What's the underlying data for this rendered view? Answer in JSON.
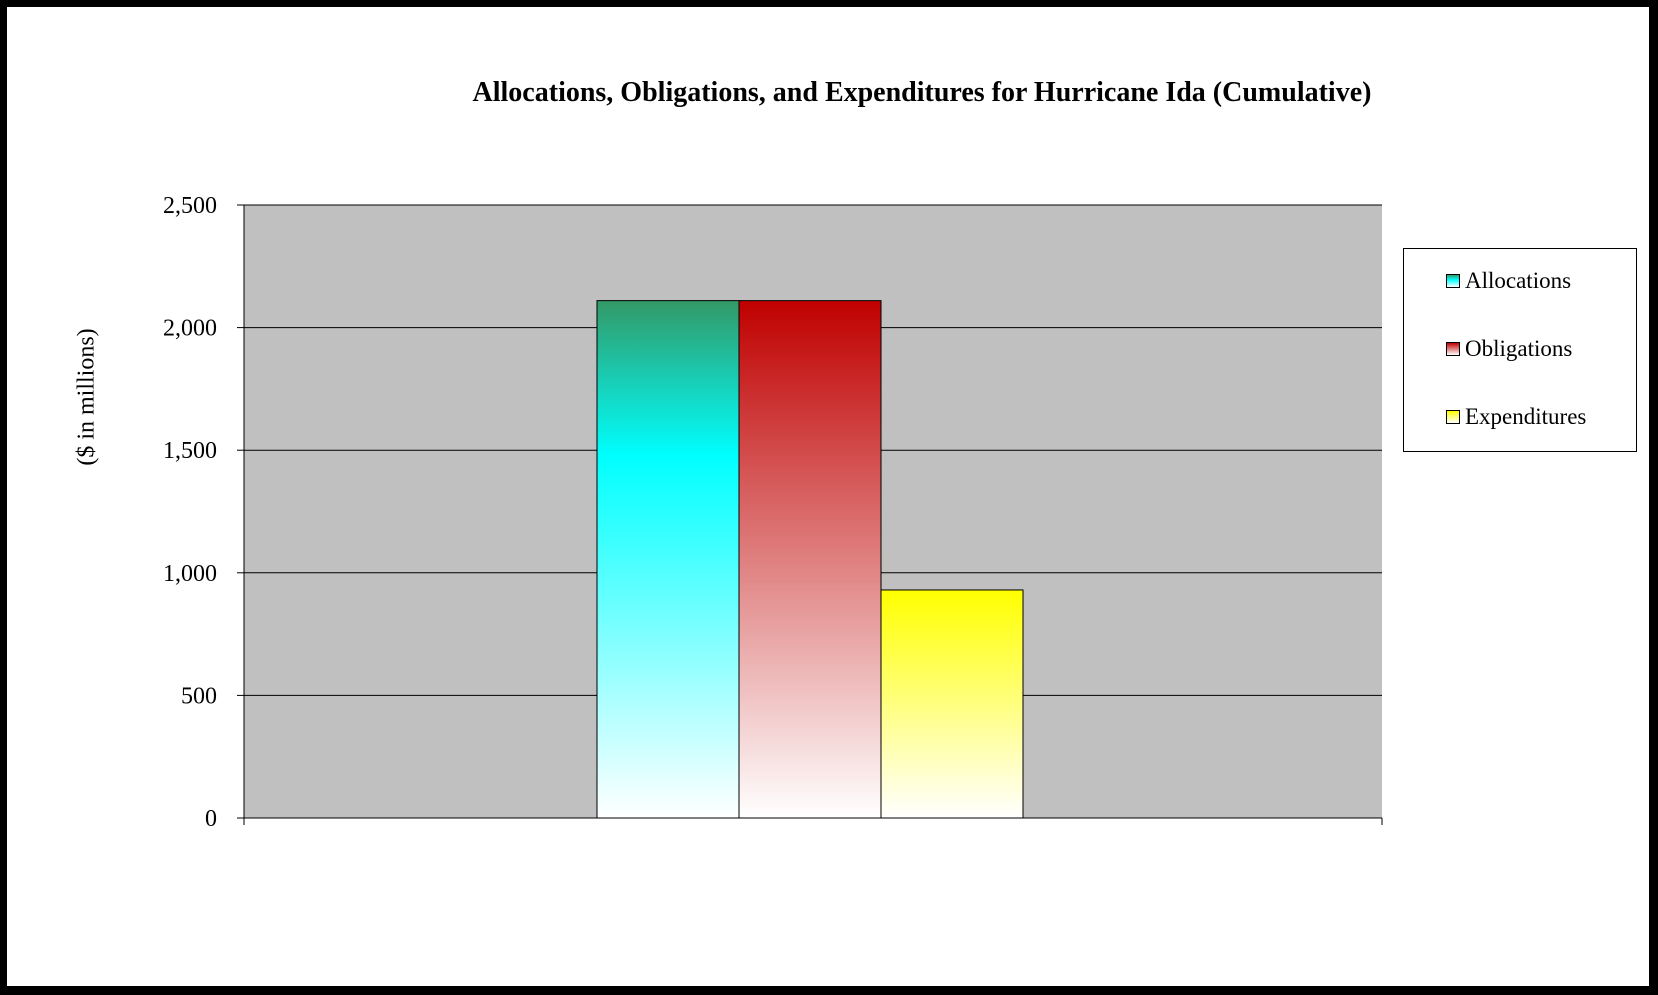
{
  "chart_data": {
    "type": "bar",
    "title": "Allocations, Obligations, and Expenditures for Hurricane Ida (Cumulative)",
    "xlabel": "",
    "ylabel": "($ in millions)",
    "ylim": [
      0,
      2500
    ],
    "yticks": [
      0,
      500,
      1000,
      1500,
      2000,
      2500
    ],
    "ytick_labels": [
      "0",
      "500",
      "1,000",
      "1,500",
      "2,000",
      "2,500"
    ],
    "categories": [
      ""
    ],
    "series": [
      {
        "name": "Allocations",
        "values": [
          2110
        ],
        "color": "#00ffff",
        "top_color": "#339966"
      },
      {
        "name": "Obligations",
        "values": [
          2110
        ],
        "color": "#c00000",
        "top_color": "#c00000"
      },
      {
        "name": "Expenditures",
        "values": [
          930
        ],
        "color": "#ffff00",
        "top_color": "#ffff00"
      }
    ],
    "grid": true,
    "legend": "right",
    "plot_background": "#c0c0c0"
  }
}
